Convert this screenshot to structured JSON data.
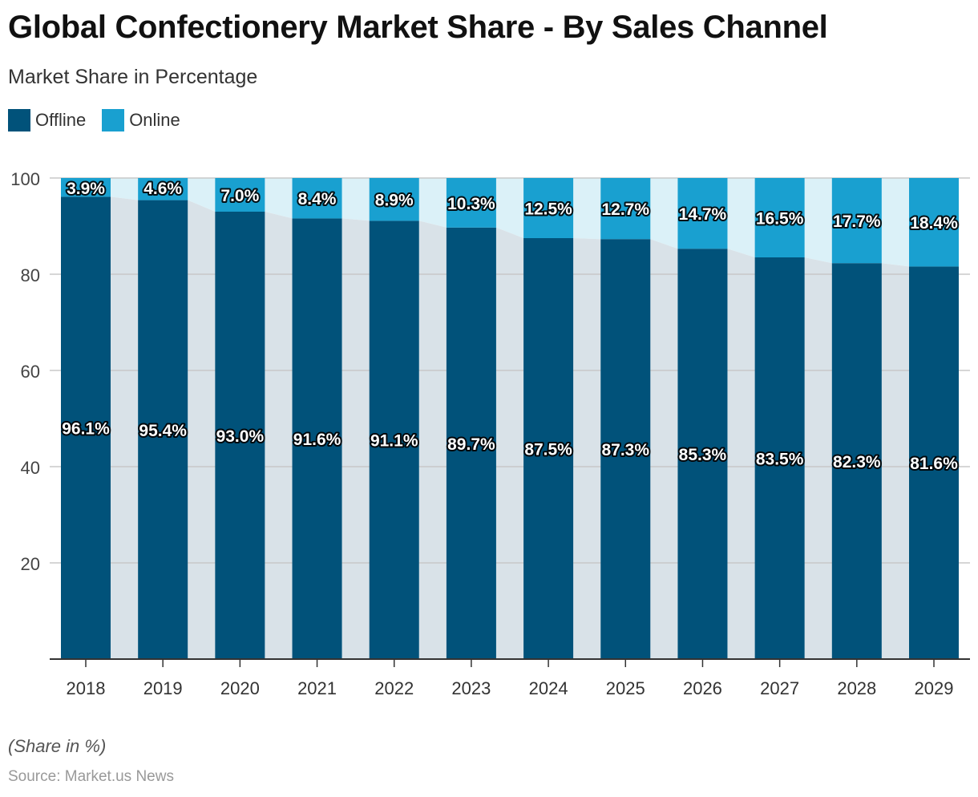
{
  "title": "Global Confectionery Market Share - By Sales Channel",
  "subtitle": "Market Share in Percentage",
  "note": "(Share in %)",
  "source": "Source: Market.us News",
  "colors": {
    "offline": "#01527a",
    "online": "#19a0d0",
    "offline_band": "#d9e2e8",
    "online_band": "#dbf1f8",
    "grid": "#c8c8c8",
    "axis": "#333333",
    "tick_text": "#444444",
    "label_text": "#ffffff"
  },
  "chart_data": {
    "type": "bar",
    "stacked": true,
    "categories": [
      "2018",
      "2019",
      "2020",
      "2021",
      "2022",
      "2023",
      "2024",
      "2025",
      "2026",
      "2027",
      "2028",
      "2029"
    ],
    "series": [
      {
        "name": "Offline",
        "values": [
          96.1,
          95.4,
          93.0,
          91.6,
          91.1,
          89.7,
          87.5,
          87.3,
          85.3,
          83.5,
          82.3,
          81.6
        ],
        "labels": [
          "96.1%",
          "95.4%",
          "93.0%",
          "91.6%",
          "91.1%",
          "89.7%",
          "87.5%",
          "87.3%",
          "85.3%",
          "83.5%",
          "82.3%",
          "81.6%"
        ]
      },
      {
        "name": "Online",
        "values": [
          3.9,
          4.6,
          7.0,
          8.4,
          8.9,
          10.3,
          12.5,
          12.7,
          14.7,
          16.5,
          17.7,
          18.4
        ],
        "labels": [
          "3.9%",
          "4.6%",
          "7.0%",
          "8.4%",
          "8.9%",
          "10.3%",
          "12.5%",
          "12.7%",
          "14.7%",
          "16.5%",
          "17.7%",
          "18.4%"
        ]
      }
    ],
    "ylim": [
      0,
      100
    ],
    "yticks": [
      20,
      40,
      60,
      80,
      100
    ],
    "grid": true,
    "legend_position": "top-left"
  }
}
